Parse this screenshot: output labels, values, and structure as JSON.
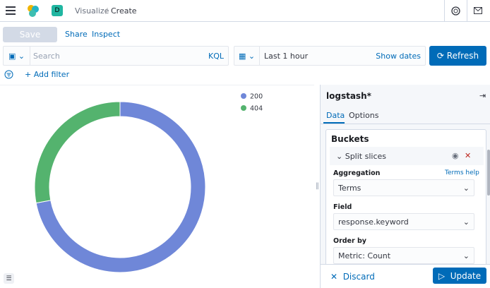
{
  "header": {
    "space_letter": "D",
    "breadcrumbs": [
      "Visualize",
      "Create"
    ]
  },
  "toolbar": {
    "save": "Save",
    "share": "Share",
    "inspect": "Inspect"
  },
  "query": {
    "search_placeholder": "Search",
    "language": "KQL",
    "time": "Last 1 hour",
    "show_dates": "Show dates",
    "refresh": "Refresh",
    "add_filter": "+ Add filter"
  },
  "chart_data": {
    "type": "pie",
    "donut": true,
    "categories": [
      "200",
      "404"
    ],
    "values": [
      72,
      28
    ],
    "colors": [
      "#6f87d8",
      "#54b36e"
    ],
    "legend_position": "top-right"
  },
  "sidebar": {
    "index": "logstash*",
    "tabs": [
      "Data",
      "Options"
    ],
    "section": "Buckets",
    "agg_title": "Split slices",
    "fields": [
      {
        "label": "Aggregation",
        "help": "Terms help",
        "value": "Terms"
      },
      {
        "label": "Field",
        "value": "response.keyword"
      },
      {
        "label": "Order by",
        "value": "Metric: Count"
      }
    ],
    "discard": "Discard",
    "update": "Update"
  }
}
